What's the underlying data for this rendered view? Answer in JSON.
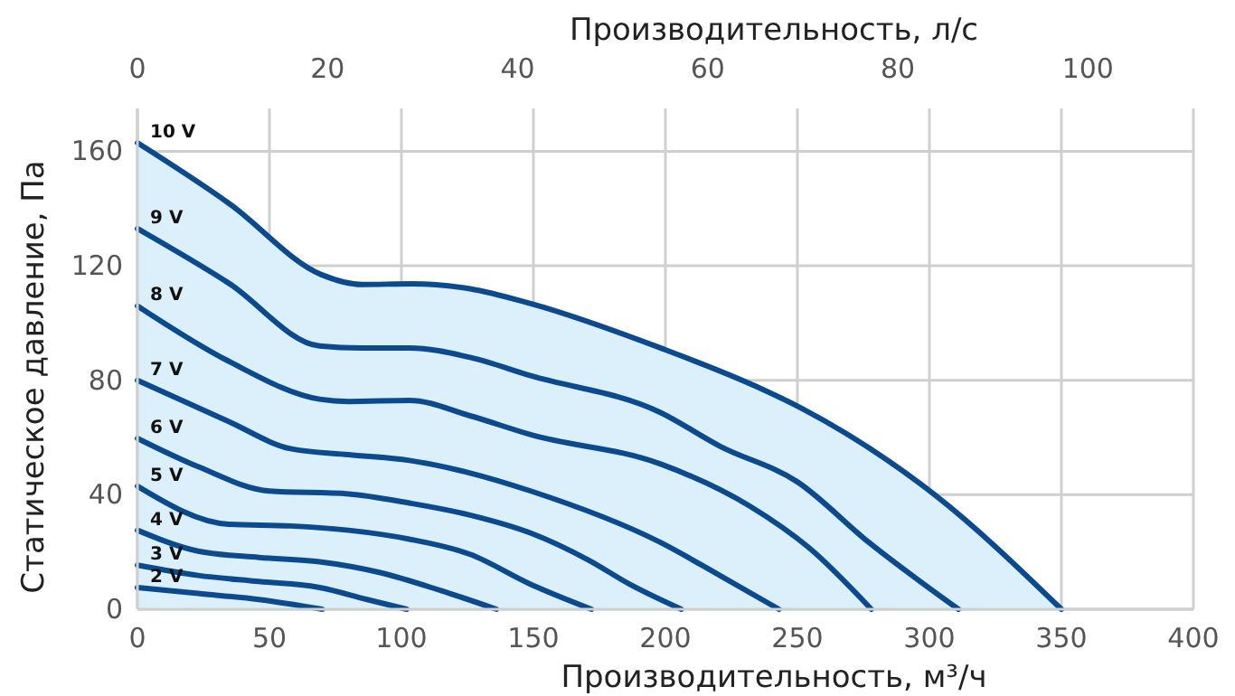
{
  "chart_data": {
    "type": "line",
    "xlabel": "Производительность, м³/ч",
    "ylabel": "Статическое давление, Па",
    "x2label": "Производительность, л/с",
    "xlim": [
      0,
      400
    ],
    "xticks": [
      0,
      50,
      100,
      150,
      200,
      250,
      300,
      350,
      400
    ],
    "x2lim": [
      0,
      111.1
    ],
    "x2ticks": [
      0,
      20,
      40,
      60,
      80,
      100
    ],
    "ylim": [
      0,
      175
    ],
    "yticks": [
      0,
      40,
      80,
      120,
      160
    ],
    "grid": true,
    "line_style": "solid",
    "marker": "none",
    "series": [
      {
        "name": "10 V",
        "type": "area",
        "color": "#0b4a8f",
        "x": [
          0,
          35,
          69.5,
          85,
          104,
          126,
          149,
          199,
          234,
          252,
          302,
          350
        ],
        "values": [
          163,
          141.6,
          117,
          113.5,
          113.7,
          112,
          106.8,
          91,
          78,
          70,
          40,
          0
        ]
      },
      {
        "name": "9 V",
        "color": "#0b4a8f",
        "x": [
          0,
          34.5,
          69,
          85,
          103,
          126,
          149,
          198,
          220.6,
          250,
          277,
          311
        ],
        "values": [
          133,
          114,
          92,
          91.3,
          91.3,
          88,
          81.6,
          68.8,
          57,
          44.5,
          23.4,
          0
        ]
      },
      {
        "name": "8 V",
        "color": "#0b4a8f",
        "x": [
          0,
          34.5,
          69,
          80,
          103,
          126,
          149,
          198,
          232,
          254.6,
          278
        ],
        "values": [
          106,
          86.7,
          73.4,
          72.6,
          73,
          67.6,
          61,
          50.8,
          36,
          21.3,
          0
        ]
      },
      {
        "name": "7 V",
        "color": "#0b4a8f",
        "x": [
          0,
          34.5,
          58,
          80,
          103,
          126,
          149,
          198,
          220.6,
          243
        ],
        "values": [
          80,
          65.6,
          56.1,
          54,
          52,
          47.6,
          41.3,
          23.4,
          11.8,
          0
        ]
      },
      {
        "name": "6 V",
        "color": "#0b4a8f",
        "x": [
          0,
          23,
          50,
          80,
          103,
          126,
          149,
          171,
          186.5,
          206
        ],
        "values": [
          59.7,
          49.8,
          41.3,
          40.3,
          37.1,
          32.9,
          26.6,
          17.1,
          8.7,
          0
        ]
      },
      {
        "name": "5 V",
        "color": "#0b4a8f",
        "x": [
          0,
          34.5,
          58,
          80,
          103,
          126,
          149,
          172
        ],
        "values": [
          43,
          29.7,
          29.1,
          27.6,
          24.5,
          19.2,
          8.7,
          0
        ]
      },
      {
        "name": "4 V",
        "color": "#0b4a8f",
        "x": [
          0,
          23,
          46,
          69,
          92,
          115,
          136
        ],
        "values": [
          27.6,
          20.3,
          18.1,
          16.6,
          12.8,
          6.5,
          0
        ]
      },
      {
        "name": "3 V",
        "color": "#0b4a8f",
        "x": [
          0,
          23,
          46,
          69,
          87,
          102
        ],
        "values": [
          15.4,
          11.8,
          9.7,
          7.6,
          3.4,
          0
        ]
      },
      {
        "name": "2 V",
        "color": "#0b4a8f",
        "x": [
          0,
          23,
          46,
          70
        ],
        "values": [
          7.6,
          5.5,
          3.4,
          0
        ]
      }
    ]
  }
}
